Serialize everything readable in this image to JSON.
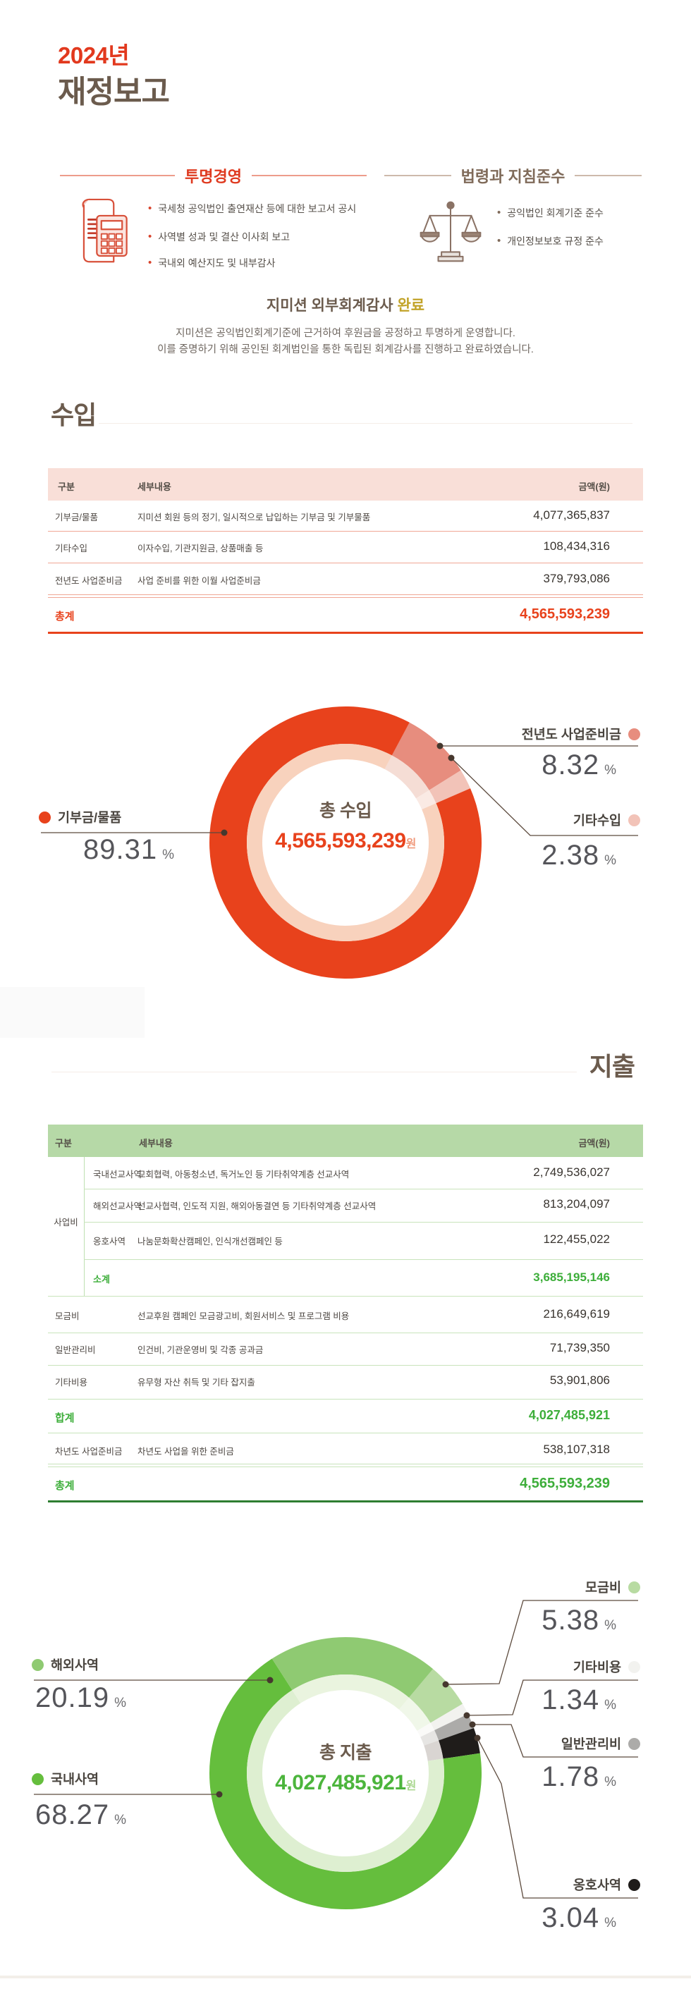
{
  "page": {
    "year": "2024년",
    "title": "재정보고"
  },
  "labels": {
    "percent": "%"
  },
  "pillars": {
    "left": {
      "title": "투명경영",
      "icon": "receipt-calculator-icon",
      "bullets": [
        "국세청 공익법인 출연재산 등에 대한 보고서 공시",
        "사역별 성과 및 결산 이사회 보고",
        "국내외 예산지도 및 내부감사"
      ]
    },
    "right": {
      "title": "법령과 지침준수",
      "icon": "balance-scale-icon",
      "bullets": [
        "공익법인 회계기준 준수",
        "개인정보보호 규정 준수"
      ]
    }
  },
  "audit": {
    "org": "지미션 외부회계감사",
    "status": "완료",
    "body1": "지미션은 공익법인회계기준에 근거하여 후원금을 공정하고 투명하게 운영합니다.",
    "body2": "이를 증명하기 위해 공인된 회계법인을 통한 독립된 회계감사를 진행하고 완료하였습니다."
  },
  "income": {
    "title": "수입",
    "table": {
      "headers": [
        "구분",
        "세부내용",
        "금액(원)"
      ],
      "rows": [
        {
          "label": "기부금/물품",
          "desc": "지미션 회원 등의 정기, 일시적으로 납입하는 기부금 및 기부물품",
          "amount": "4,077,365,837"
        },
        {
          "label": "기타수입",
          "desc": "이자수입, 기관지원금, 상품매출 등",
          "amount": "108,434,316"
        },
        {
          "label": "전년도 사업준비금",
          "desc": "사업 준비를 위한 이월 사업준비금",
          "amount": "379,793,086"
        }
      ],
      "total": {
        "label": "총계",
        "amount": "4,565,593,239"
      }
    }
  },
  "expense": {
    "title": "지출",
    "table": {
      "headers": [
        "구분",
        "세부내용",
        "금액(원)"
      ],
      "group": {
        "label": "사업비",
        "rows": [
          {
            "label": "국내선교사역",
            "desc": "교회협력, 아동청소년, 독거노인 등 기타취약계층 선교사역",
            "amount": "2,749,536,027"
          },
          {
            "label": "해외선교사역",
            "desc": "선교사협력, 인도적 지원, 해외아동결연 등 기타취약계층 선교사역",
            "amount": "813,204,097"
          },
          {
            "label": "옹호사역",
            "desc": "나눔문화확산캠페인, 인식개선캠페인 등",
            "amount": "122,455,022"
          }
        ],
        "subtotal": {
          "label": "소계",
          "amount": "3,685,195,146"
        }
      },
      "rows": [
        {
          "label": "모금비",
          "desc": "선교후원 캠페인 모금광고비, 회원서비스 및 프로그램 비용",
          "amount": "216,649,619"
        },
        {
          "label": "일반관리비",
          "desc": "인건비, 기관운영비 및 각종 공과금",
          "amount": "71,739,350"
        },
        {
          "label": "기타비용",
          "desc": "유무형 자산 취득 및 기타 잡지출",
          "amount": "53,901,806"
        }
      ],
      "sum": {
        "label": "합계",
        "amount": "4,027,485,921"
      },
      "carry": {
        "label": "차년도 사업준비금",
        "desc": "차년도 사업을 위한 준비금",
        "amount": "538,107,318"
      },
      "total": {
        "label": "총계",
        "amount": "4,565,593,239"
      }
    }
  },
  "chart_data": [
    {
      "type": "pie",
      "variant": "donut",
      "title": "총 수입",
      "center_value": "4,565,593,239",
      "unit": "원",
      "start_angle": 28,
      "legend_position": "sides",
      "segments": [
        {
          "label": "전년도 사업준비금",
          "pct": 8.32,
          "color": "#E78D7E",
          "echo_color": "#F5DDD5"
        },
        {
          "label": "기타수입",
          "pct": 2.38,
          "color": "#F2C3B8",
          "echo_color": "#FAEAE4"
        },
        {
          "label": "기부금/물품",
          "pct": 89.31,
          "color": "#E8421C",
          "echo_color": "#F8D2BD"
        }
      ]
    },
    {
      "type": "pie",
      "variant": "donut",
      "title": "총 지출",
      "center_value": "4,027,485,921",
      "unit": "원",
      "start_angle": 40,
      "legend_position": "sides",
      "segments": [
        {
          "label": "모금비",
          "pct": 5.38,
          "color": "#B8DBA2",
          "echo_color": "#F0F7E9"
        },
        {
          "label": "기타비용",
          "pct": 1.34,
          "color": "#F2F2EF",
          "echo_color": "#FAFAF8"
        },
        {
          "label": "일반관리비",
          "pct": 1.78,
          "color": "#ACABA9",
          "echo_color": "#E6E5E3"
        },
        {
          "label": "옹호사역",
          "pct": 3.04,
          "color": "#1F1C1A",
          "echo_color": "#D9D5D2"
        },
        {
          "label": "국내사역",
          "pct": 68.27,
          "color": "#65BE3D",
          "echo_color": "#DEEFD1"
        },
        {
          "label": "해외사역",
          "pct": 20.19,
          "color": "#8FCA72",
          "echo_color": "#EAF4DF"
        }
      ]
    }
  ],
  "colors": {
    "accent_red": "#E8421C",
    "accent_green": "#3DAE3A",
    "title_brown": "#6B5B4D",
    "gold": "#C2A328",
    "income_header_bg": "#F9DFD8",
    "expense_header_bg": "#B6D9A7"
  }
}
